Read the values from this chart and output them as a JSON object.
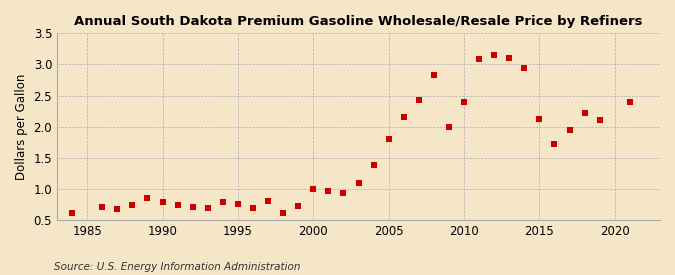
{
  "title": "Annual South Dakota Premium Gasoline Wholesale/Resale Price by Refiners",
  "ylabel": "Dollars per Gallon",
  "source": "Source: U.S. Energy Information Administration",
  "background_color": "#f5e6c8",
  "marker_color": "#cc0000",
  "years": [
    1984,
    1986,
    1987,
    1988,
    1989,
    1990,
    1991,
    1992,
    1993,
    1994,
    1995,
    1996,
    1997,
    1998,
    1999,
    2000,
    2001,
    2002,
    2003,
    2004,
    2005,
    2006,
    2007,
    2008,
    2009,
    2010,
    2011,
    2012,
    2013,
    2014,
    2015,
    2016,
    2017,
    2018,
    2019,
    2021
  ],
  "values": [
    0.61,
    0.71,
    0.68,
    0.75,
    0.86,
    0.79,
    0.75,
    0.71,
    0.69,
    0.79,
    0.76,
    0.7,
    0.8,
    0.62,
    0.72,
    1.0,
    0.96,
    0.93,
    1.1,
    1.38,
    1.8,
    2.15,
    2.43,
    2.83,
    1.99,
    2.4,
    3.08,
    3.15,
    3.1,
    2.95,
    2.12,
    1.73,
    1.95,
    2.22,
    2.11,
    2.4
  ],
  "xlim": [
    1983,
    2023
  ],
  "ylim": [
    0.5,
    3.5
  ],
  "xticks": [
    1985,
    1990,
    1995,
    2000,
    2005,
    2010,
    2015,
    2020
  ],
  "yticks": [
    0.5,
    1.0,
    1.5,
    2.0,
    2.5,
    3.0,
    3.5
  ],
  "title_fontsize": 9.5,
  "label_fontsize": 8.5,
  "source_fontsize": 7.5,
  "marker_size": 18
}
